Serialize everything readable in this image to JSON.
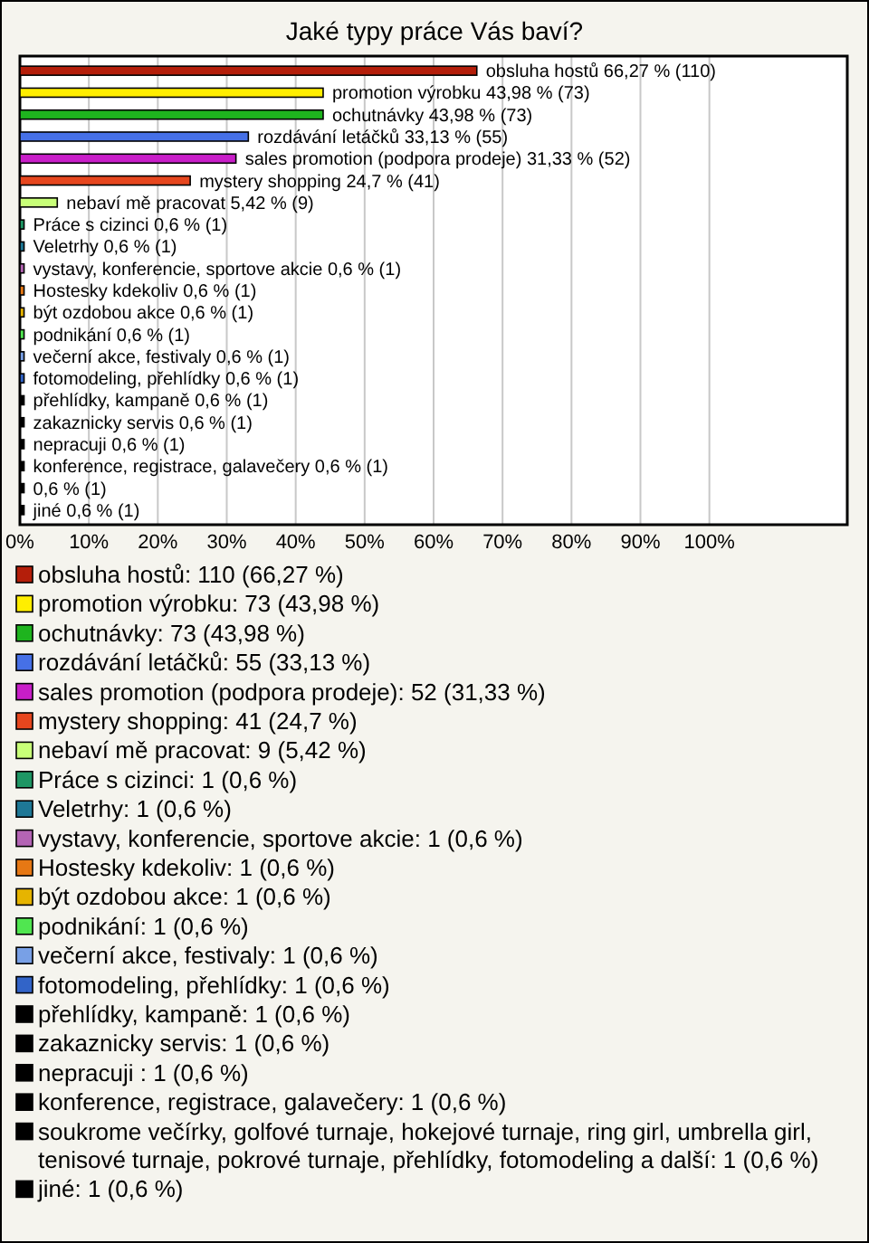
{
  "chart_data": {
    "type": "bar",
    "orientation": "horizontal",
    "title": "Jaké typy práce Vás baví?",
    "categories": [
      "obsluha hostů 66,27 % (110)",
      "promotion výrobku 43,98 % (73)",
      "ochutnávky 43,98 % (73)",
      "rozdávání letáčků 33,13 % (55)",
      "sales promotion (podpora prodeje) 31,33 % (52)",
      "mystery shopping 24,7 % (41)",
      "nebaví mě pracovat 5,42 % (9)",
      "Práce s cizinci 0,6 % (1)",
      "Veletrhy 0,6 % (1)",
      "vystavy, konferencie, sportove akcie 0,6 % (1)",
      "Hostesky kdekoliv 0,6 % (1)",
      "být ozdobou akce 0,6 % (1)",
      "podnikání 0,6 % (1)",
      "večerní akce, festivaly 0,6 % (1)",
      "fotomodeling, přehlídky 0,6 % (1)",
      "přehlídky, kampaně 0,6 % (1)",
      "zakaznicky servis 0,6 % (1)",
      "nepracuji  0,6 % (1)",
      "konference, registrace, galavečery 0,6 % (1)",
      "0,6 % (1)",
      "jiné 0,6 % (1)"
    ],
    "series": [
      {
        "name": "obsluha hostů: 110 (66,27 %)",
        "color": "#b41e0a",
        "values": [
          66.27,
          null,
          null,
          null,
          null,
          null,
          null,
          null,
          null,
          null,
          null,
          null,
          null,
          null,
          null,
          null,
          null,
          null,
          null,
          null,
          null
        ]
      },
      {
        "name": "promotion výrobku: 73 (43,98 %)",
        "color": "#ffee00",
        "values": [
          null,
          43.98,
          null,
          null,
          null,
          null,
          null,
          null,
          null,
          null,
          null,
          null,
          null,
          null,
          null,
          null,
          null,
          null,
          null,
          null,
          null
        ]
      },
      {
        "name": "ochutnávky: 73 (43,98 %)",
        "color": "#1eb41e",
        "values": [
          null,
          null,
          43.98,
          null,
          null,
          null,
          null,
          null,
          null,
          null,
          null,
          null,
          null,
          null,
          null,
          null,
          null,
          null,
          null,
          null,
          null
        ]
      },
      {
        "name": "rozdávání letáčků: 55 (33,13 %)",
        "color": "#4670e6",
        "values": [
          null,
          null,
          null,
          33.13,
          null,
          null,
          null,
          null,
          null,
          null,
          null,
          null,
          null,
          null,
          null,
          null,
          null,
          null,
          null,
          null,
          null
        ]
      },
      {
        "name": "sales promotion (podpora prodeje): 52 (31,33 %)",
        "color": "#c81ec8",
        "values": [
          null,
          null,
          null,
          null,
          31.33,
          null,
          null,
          null,
          null,
          null,
          null,
          null,
          null,
          null,
          null,
          null,
          null,
          null,
          null,
          null,
          null
        ]
      },
      {
        "name": "mystery shopping: 41 (24,7 %)",
        "color": "#e6461e",
        "values": [
          null,
          null,
          null,
          null,
          null,
          24.7,
          null,
          null,
          null,
          null,
          null,
          null,
          null,
          null,
          null,
          null,
          null,
          null,
          null,
          null,
          null
        ]
      },
      {
        "name": "nebaví mě pracovat: 9 (5,42 %)",
        "color": "#c8ff78",
        "values": [
          null,
          null,
          null,
          null,
          null,
          null,
          5.42,
          null,
          null,
          null,
          null,
          null,
          null,
          null,
          null,
          null,
          null,
          null,
          null,
          null,
          null
        ]
      },
      {
        "name": "Práce s cizinci: 1 (0,6 %)",
        "color": "#1e9664",
        "values": [
          null,
          null,
          null,
          null,
          null,
          null,
          null,
          0.6,
          null,
          null,
          null,
          null,
          null,
          null,
          null,
          null,
          null,
          null,
          null,
          null,
          null
        ]
      },
      {
        "name": "Veletrhy: 1 (0,6 %)",
        "color": "#1e7896",
        "values": [
          null,
          null,
          null,
          null,
          null,
          null,
          null,
          null,
          0.6,
          null,
          null,
          null,
          null,
          null,
          null,
          null,
          null,
          null,
          null,
          null,
          null
        ]
      },
      {
        "name": "vystavy, konferencie, sportove akcie: 1 (0,6 %)",
        "color": "#b464b4",
        "values": [
          null,
          null,
          null,
          null,
          null,
          null,
          null,
          null,
          null,
          0.6,
          null,
          null,
          null,
          null,
          null,
          null,
          null,
          null,
          null,
          null,
          null
        ]
      },
      {
        "name": "Hostesky kdekoliv: 1 (0,6 %)",
        "color": "#e67814",
        "values": [
          null,
          null,
          null,
          null,
          null,
          null,
          null,
          null,
          null,
          null,
          0.6,
          null,
          null,
          null,
          null,
          null,
          null,
          null,
          null,
          null,
          null
        ]
      },
      {
        "name": "být ozdobou akce: 1 (0,6 %)",
        "color": "#e6b400",
        "values": [
          null,
          null,
          null,
          null,
          null,
          null,
          null,
          null,
          null,
          null,
          null,
          0.6,
          null,
          null,
          null,
          null,
          null,
          null,
          null,
          null,
          null
        ]
      },
      {
        "name": "podnikání: 1 (0,6 %)",
        "color": "#50e650",
        "values": [
          null,
          null,
          null,
          null,
          null,
          null,
          null,
          null,
          null,
          null,
          null,
          null,
          0.6,
          null,
          null,
          null,
          null,
          null,
          null,
          null,
          null
        ]
      },
      {
        "name": "večerní akce, festivaly: 1 (0,6 %)",
        "color": "#78a0e6",
        "values": [
          null,
          null,
          null,
          null,
          null,
          null,
          null,
          null,
          null,
          null,
          null,
          null,
          null,
          0.6,
          null,
          null,
          null,
          null,
          null,
          null,
          null
        ]
      },
      {
        "name": "fotomodeling, přehlídky: 1 (0,6 %)",
        "color": "#3264c8",
        "values": [
          null,
          null,
          null,
          null,
          null,
          null,
          null,
          null,
          null,
          null,
          null,
          null,
          null,
          null,
          0.6,
          null,
          null,
          null,
          null,
          null,
          null
        ]
      },
      {
        "name": "přehlídky, kampaně: 1 (0,6 %)",
        "color": "#000000",
        "values": [
          null,
          null,
          null,
          null,
          null,
          null,
          null,
          null,
          null,
          null,
          null,
          null,
          null,
          null,
          null,
          0.6,
          null,
          null,
          null,
          null,
          null
        ]
      },
      {
        "name": "zakaznicky servis: 1 (0,6 %)",
        "color": "#000000",
        "values": [
          null,
          null,
          null,
          null,
          null,
          null,
          null,
          null,
          null,
          null,
          null,
          null,
          null,
          null,
          null,
          null,
          0.6,
          null,
          null,
          null,
          null
        ]
      },
      {
        "name": "nepracuji : 1 (0,6 %)",
        "color": "#000000",
        "values": [
          null,
          null,
          null,
          null,
          null,
          null,
          null,
          null,
          null,
          null,
          null,
          null,
          null,
          null,
          null,
          null,
          null,
          0.6,
          null,
          null,
          null
        ]
      },
      {
        "name": "konference, registrace, galavečery: 1 (0,6 %)",
        "color": "#000000",
        "values": [
          null,
          null,
          null,
          null,
          null,
          null,
          null,
          null,
          null,
          null,
          null,
          null,
          null,
          null,
          null,
          null,
          null,
          null,
          0.6,
          null,
          null
        ]
      },
      {
        "name": "soukrome večírky, golfové turnaje, hokejové turnaje, ring girl, umbrella girl, tenisové turnaje, pokrové turnaje, přehlídky, fotomodeling a další: 1 (0,6 %)",
        "color": "#000000",
        "values": [
          null,
          null,
          null,
          null,
          null,
          null,
          null,
          null,
          null,
          null,
          null,
          null,
          null,
          null,
          null,
          null,
          null,
          null,
          null,
          0.6,
          null
        ]
      },
      {
        "name": "jiné: 1 (0,6 %)",
        "color": "#000000",
        "values": [
          null,
          null,
          null,
          null,
          null,
          null,
          null,
          null,
          null,
          null,
          null,
          null,
          null,
          null,
          null,
          null,
          null,
          null,
          null,
          null,
          0.6
        ]
      }
    ],
    "xlim": [
      0,
      120
    ],
    "xticks": [
      {
        "value": 0,
        "label": "0%"
      },
      {
        "value": 10,
        "label": "10%"
      },
      {
        "value": 20,
        "label": "20%"
      },
      {
        "value": 30,
        "label": "30%"
      },
      {
        "value": 40,
        "label": "40%"
      },
      {
        "value": 50,
        "label": "50%"
      },
      {
        "value": 60,
        "label": "60%"
      },
      {
        "value": 70,
        "label": "70%"
      },
      {
        "value": 80,
        "label": "80%"
      },
      {
        "value": 90,
        "label": "90%"
      },
      {
        "value": 100,
        "label": "100%"
      }
    ],
    "grid": "x",
    "legend": "bottom"
  }
}
